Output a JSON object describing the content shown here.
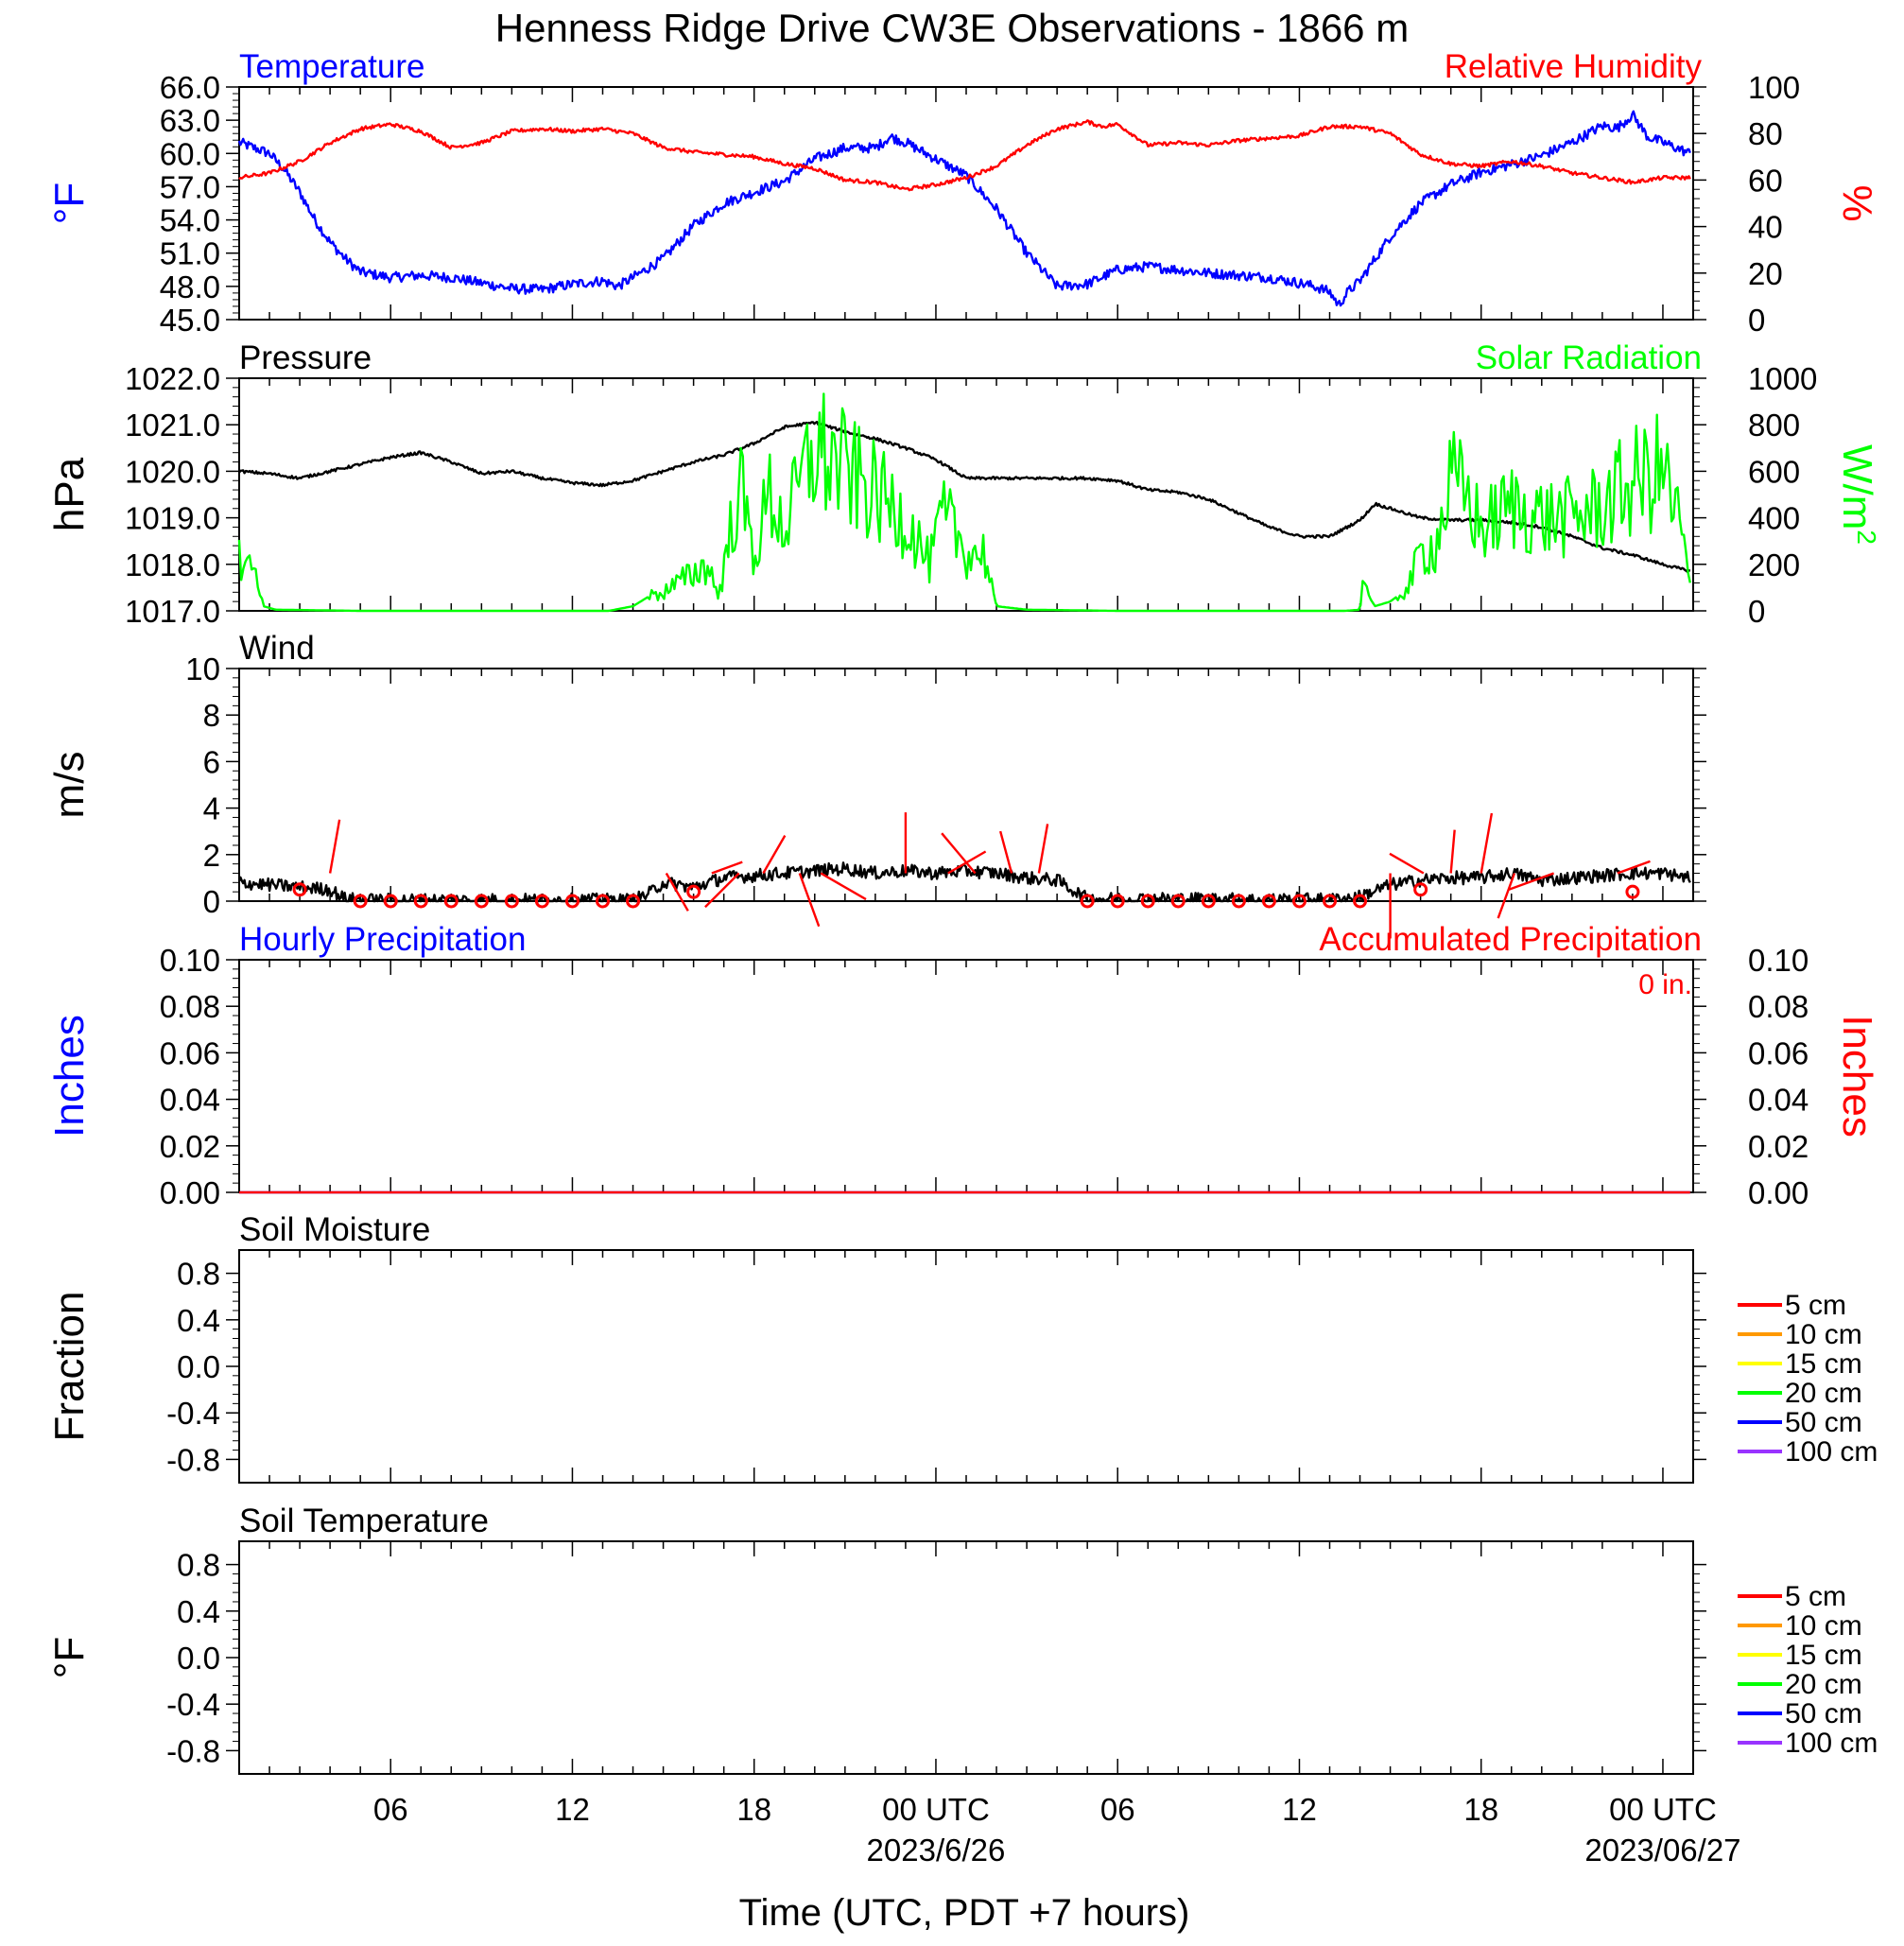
{
  "title": "Henness Ridge Drive CW3E Observations - 1866 m",
  "xlabel": "Time (UTC, PDT +7 hours)",
  "time_axis": {
    "start_hour": 1,
    "end_hour": 49,
    "ticks": [
      {
        "hour": 6,
        "label": "06"
      },
      {
        "hour": 12,
        "label": "12"
      },
      {
        "hour": 18,
        "label": "18"
      },
      {
        "hour": 24,
        "label": "00 UTC",
        "sublabel": "2023/6/26"
      },
      {
        "hour": 30,
        "label": "06"
      },
      {
        "hour": 36,
        "label": "12"
      },
      {
        "hour": 42,
        "label": "18"
      },
      {
        "hour": 48,
        "label": "00 UTC",
        "sublabel": "2023/06/27"
      }
    ]
  },
  "colors": {
    "temperature": "#0000ff",
    "humidity": "#ff0000",
    "pressure": "#000000",
    "solar": "#00ff00",
    "wind": "#000000",
    "barbs": "#ff0000",
    "hourly_precip": "#0000ff",
    "accum_precip": "#ff0000"
  },
  "chart_data": [
    {
      "id": "temp_rh",
      "type": "line",
      "left_title": "Temperature",
      "right_title": "Relative Humidity",
      "ylabel_left": "°F",
      "ylabel_right": "%",
      "ylim_left": [
        45,
        66
      ],
      "ylim_right": [
        0,
        100
      ],
      "yticks_left": [
        "45.0",
        "48.0",
        "51.0",
        "54.0",
        "57.0",
        "60.0",
        "63.0",
        "66.0"
      ],
      "yticks_right": [
        "0",
        "20",
        "40",
        "60",
        "80",
        "100"
      ],
      "series": [
        {
          "axis": "left",
          "color": "#0000ff",
          "noise": 0.45,
          "x": [
            1,
            1.5,
            2,
            2.5,
            3,
            3.5,
            4,
            4.5,
            5,
            6,
            7,
            8,
            9,
            10,
            11,
            12,
            13,
            13.5,
            14,
            15,
            16,
            17,
            18,
            19,
            20,
            20.5,
            21,
            22,
            22.5,
            23,
            24,
            25,
            26,
            27,
            28,
            29,
            30,
            31,
            32,
            33,
            34,
            35,
            36,
            36.5,
            37,
            37.3,
            37.6,
            38,
            39,
            40,
            41,
            42,
            43,
            44,
            45,
            46,
            46.5,
            47,
            47.5,
            48,
            48.9
          ],
          "y": [
            61,
            60.5,
            60,
            58.5,
            56.5,
            54,
            52,
            50.5,
            49.3,
            48.8,
            49,
            48.8,
            48.3,
            47.8,
            47.7,
            48.2,
            48.5,
            48.0,
            48.8,
            50.5,
            53.5,
            55.5,
            56.5,
            57.5,
            59.5,
            60,
            60.5,
            60.5,
            61.5,
            61,
            59.5,
            58,
            55,
            51,
            48,
            48.2,
            49.5,
            49.8,
            49.5,
            49.2,
            49.0,
            48.8,
            48.3,
            48.0,
            47.5,
            46.3,
            47.5,
            48.5,
            52.5,
            55.5,
            57.2,
            58.3,
            59,
            59.8,
            61,
            62.5,
            62.3,
            63.5,
            61.5,
            61,
            60
          ]
        },
        {
          "axis": "right",
          "color": "#ff0000",
          "noise": 0.8,
          "x": [
            1,
            2,
            3,
            4,
            5,
            6,
            7,
            8,
            9,
            10,
            11,
            12,
            13,
            14,
            15,
            16,
            17,
            18,
            19,
            20,
            21,
            22,
            23,
            24,
            25,
            26,
            27,
            28,
            29,
            29.5,
            30,
            31,
            32,
            33,
            34,
            35,
            36,
            37,
            38,
            39,
            40,
            41,
            42,
            43,
            44,
            45,
            46,
            47,
            48,
            48.9
          ],
          "y": [
            61,
            63,
            68,
            76,
            82,
            84,
            81,
            74,
            76,
            81,
            82,
            81,
            82,
            80,
            74,
            72,
            71,
            70,
            67,
            65,
            60,
            59,
            56,
            58,
            61,
            66,
            75,
            82,
            85,
            83,
            84,
            75,
            76,
            75,
            77,
            78,
            79,
            83,
            83,
            80,
            71,
            67,
            66,
            68,
            66,
            63,
            61,
            59,
            61,
            61
          ]
        }
      ]
    },
    {
      "id": "pres_solar",
      "type": "line",
      "left_title": "Pressure",
      "right_title": "Solar Radiation",
      "ylabel_left": "hPa",
      "ylabel_right": "W/m",
      "ylabel_right_sup": "2",
      "ylim_left": [
        1017,
        1022
      ],
      "ylim_right": [
        0,
        1000
      ],
      "yticks_left": [
        "1017.0",
        "1018.0",
        "1019.0",
        "1020.0",
        "1021.0",
        "1022.0"
      ],
      "yticks_right": [
        "0",
        "200",
        "400",
        "600",
        "800",
        "1000"
      ],
      "series": [
        {
          "axis": "left",
          "color": "#000000",
          "noise": 0.03,
          "x": [
            1,
            2,
            3,
            4,
            5,
            6,
            7,
            8,
            9,
            10,
            11,
            12,
            13,
            14,
            15,
            16,
            17,
            18,
            19,
            20,
            21,
            22,
            23,
            24,
            25,
            26,
            27,
            28,
            29,
            30,
            31,
            32,
            33,
            34,
            35,
            36,
            37,
            38,
            38.5,
            39,
            40,
            41,
            42,
            43,
            44,
            45,
            46,
            47,
            48,
            48.9
          ],
          "y": [
            1020,
            1019.95,
            1019.85,
            1020.0,
            1020.15,
            1020.3,
            1020.4,
            1020.2,
            1019.95,
            1020.0,
            1019.85,
            1019.75,
            1019.7,
            1019.8,
            1020.0,
            1020.2,
            1020.35,
            1020.6,
            1020.95,
            1021.05,
            1020.85,
            1020.7,
            1020.5,
            1020.25,
            1019.85,
            1019.85,
            1019.85,
            1019.85,
            1019.85,
            1019.8,
            1019.6,
            1019.55,
            1019.4,
            1019.1,
            1018.8,
            1018.6,
            1018.6,
            1018.95,
            1019.3,
            1019.2,
            1019.0,
            1018.95,
            1018.95,
            1018.9,
            1018.8,
            1018.6,
            1018.35,
            1018.2,
            1018.0,
            1017.85
          ]
        },
        {
          "axis": "right",
          "color": "#00ff00",
          "noise": 0,
          "x": [
            1,
            1.6,
            1.8,
            2.2,
            5,
            10,
            13.2,
            14.0,
            14.5,
            15.0,
            15.5,
            16.0,
            16.5,
            16.8,
            17.0,
            17.5,
            18.0,
            18.5,
            19,
            20,
            21,
            22,
            23,
            23.8,
            24.2,
            24.6,
            25.0,
            25.6,
            26,
            27,
            30,
            35,
            37.5,
            38.0,
            38.1,
            38.5,
            39.0,
            39.6,
            40.0,
            40.5,
            41.0,
            41.5,
            42,
            43,
            44,
            45,
            46,
            47,
            48,
            48.6,
            48.9
          ],
          "y": [
            230,
            160,
            20,
            5,
            0,
            0,
            0,
            20,
            60,
            80,
            120,
            160,
            200,
            60,
            180,
            550,
            230,
            500,
            350,
            700,
            600,
            500,
            400,
            200,
            400,
            350,
            250,
            250,
            20,
            5,
            0,
            0,
            0,
            5,
            100,
            20,
            40,
            100,
            250,
            280,
            550,
            500,
            350,
            450,
            400,
            400,
            450,
            550,
            600,
            350,
            100
          ]
        }
      ]
    },
    {
      "id": "wind",
      "type": "line",
      "left_title": "Wind",
      "ylabel_left": "m/s",
      "ylim_left": [
        0,
        10
      ],
      "yticks_left": [
        "0",
        "2",
        "4",
        "6",
        "8",
        "10"
      ],
      "series": [
        {
          "axis": "left",
          "color": "#000000",
          "noise": 0.28,
          "x": [
            1,
            2,
            3,
            4,
            4.5,
            5,
            8,
            14,
            14.5,
            15.0,
            16,
            17,
            18,
            19,
            20,
            21,
            22,
            23,
            24,
            25,
            26,
            27,
            28,
            28.5,
            29,
            33,
            35,
            36,
            37,
            38,
            39,
            40,
            41,
            42,
            43,
            44,
            45,
            46,
            47,
            48,
            48.9
          ],
          "y": [
            0.8,
            0.7,
            0.6,
            0.5,
            0.1,
            0.05,
            0.05,
            0.05,
            0.3,
            0.8,
            0.6,
            1.0,
            1.1,
            1.2,
            1.3,
            1.4,
            1.2,
            1.3,
            1.2,
            1.3,
            1.2,
            1.0,
            0.9,
            0.5,
            0.1,
            0.1,
            0.05,
            0.1,
            0.05,
            0.2,
            0.7,
            0.9,
            1.0,
            1.0,
            1.2,
            0.9,
            1.0,
            1.1,
            1.2,
            1.2,
            1.0
          ]
        }
      ],
      "barbs": {
        "x": [
          3,
          5,
          6,
          7,
          8,
          9,
          10,
          11,
          12,
          13,
          14,
          16,
          29,
          30,
          31,
          32,
          33,
          34,
          35,
          36,
          37,
          38,
          40,
          47
        ],
        "speed": [
          0.5,
          0,
          0,
          0,
          0,
          0,
          0,
          0,
          0,
          0,
          0,
          0.4,
          0,
          0,
          0,
          0,
          0,
          0,
          0,
          0,
          0,
          0,
          0.5,
          0.4
        ]
      },
      "wind_sticks": [
        {
          "x": 4.0,
          "dir_deg": 10,
          "len": 2.5
        },
        {
          "x": 15.1,
          "dir_deg": 150,
          "len": 2.0
        },
        {
          "x": 16.6,
          "dir_deg": 70,
          "len": 1.5
        },
        {
          "x": 17.5,
          "dir_deg": 225,
          "len": 2.2
        },
        {
          "x": 18.3,
          "dir_deg": 30,
          "len": 2.0
        },
        {
          "x": 19.5,
          "dir_deg": 160,
          "len": 2.6
        },
        {
          "x": 20.2,
          "dir_deg": 120,
          "len": 2.4
        },
        {
          "x": 23.0,
          "dir_deg": 0,
          "len": 2.8
        },
        {
          "x": 24.4,
          "dir_deg": 60,
          "len": 2.0
        },
        {
          "x": 25.3,
          "dir_deg": 320,
          "len": 2.4
        },
        {
          "x": 26.5,
          "dir_deg": 345,
          "len": 2.0
        },
        {
          "x": 27.4,
          "dir_deg": 10,
          "len": 2.3
        },
        {
          "x": 39.0,
          "dir_deg": 180,
          "len": 3.0
        },
        {
          "x": 40.1,
          "dir_deg": 300,
          "len": 1.8
        },
        {
          "x": 41.0,
          "dir_deg": 5,
          "len": 2.0
        },
        {
          "x": 42.0,
          "dir_deg": 10,
          "len": 2.8
        },
        {
          "x": 43.1,
          "dir_deg": 200,
          "len": 2.2
        },
        {
          "x": 44.4,
          "dir_deg": 250,
          "len": 2.2
        },
        {
          "x": 46.5,
          "dir_deg": 70,
          "len": 1.6
        }
      ]
    },
    {
      "id": "precip",
      "type": "line",
      "left_title": "Hourly Precipitation",
      "right_title": "Accumulated Precipitation",
      "annotation": "0 in.",
      "ylabel_left": "Inches",
      "ylabel_right": "Inches",
      "ylim_left": [
        0,
        0.1
      ],
      "ylim_right": [
        0,
        0.1
      ],
      "yticks_left": [
        "0.00",
        "0.02",
        "0.04",
        "0.06",
        "0.08",
        "0.10"
      ],
      "yticks_right": [
        "0.00",
        "0.02",
        "0.04",
        "0.06",
        "0.08",
        "0.10"
      ],
      "series": [
        {
          "axis": "left",
          "color": "#0000ff",
          "noise": 0,
          "x": [
            1,
            48.9
          ],
          "y": [
            0,
            0
          ]
        },
        {
          "axis": "right",
          "color": "#ff0000",
          "noise": 0,
          "x": [
            1,
            48.9
          ],
          "y": [
            0,
            0
          ]
        }
      ]
    },
    {
      "id": "soil_moisture",
      "type": "line",
      "left_title": "Soil Moisture",
      "ylabel_left": "Fraction",
      "ylim_left": [
        -1,
        1
      ],
      "yticks_left": [
        "-0.8",
        "-0.4",
        "0.0",
        "0.4",
        "0.8"
      ],
      "legend": [
        {
          "name": "5 cm",
          "color": "#ff0000"
        },
        {
          "name": "10 cm",
          "color": "#ff9900"
        },
        {
          "name": "15 cm",
          "color": "#ffff00"
        },
        {
          "name": "20 cm",
          "color": "#00ff00"
        },
        {
          "name": "50 cm",
          "color": "#0000ff"
        },
        {
          "name": "100 cm",
          "color": "#9933ff"
        }
      ],
      "series": []
    },
    {
      "id": "soil_temp",
      "type": "line",
      "left_title": "Soil Temperature",
      "ylabel_left": "°F",
      "ylim_left": [
        -1,
        1
      ],
      "yticks_left": [
        "-0.8",
        "-0.4",
        "0.0",
        "0.4",
        "0.8"
      ],
      "legend": [
        {
          "name": "5 cm",
          "color": "#ff0000"
        },
        {
          "name": "10 cm",
          "color": "#ff9900"
        },
        {
          "name": "15 cm",
          "color": "#ffff00"
        },
        {
          "name": "20 cm",
          "color": "#00ff00"
        },
        {
          "name": "50 cm",
          "color": "#0000ff"
        },
        {
          "name": "100 cm",
          "color": "#9933ff"
        }
      ],
      "series": []
    }
  ]
}
